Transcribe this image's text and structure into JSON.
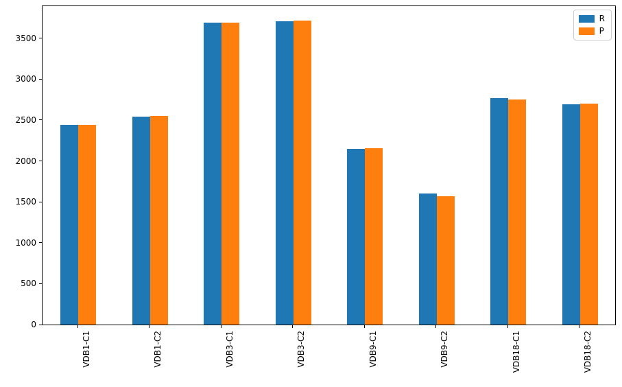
{
  "chart_data": {
    "type": "bar",
    "title": "",
    "xlabel": "",
    "ylabel": "",
    "categories": [
      "VDB1-C1",
      "VDB1-C2",
      "VDB3-C1",
      "VDB3-C2",
      "VDB9-C1",
      "VDB9-C2",
      "VDB18-C1",
      "VDB18-C2"
    ],
    "series": [
      {
        "name": "R",
        "color": "#1f77b4",
        "values": [
          2440,
          2545,
          3690,
          3705,
          2150,
          1605,
          2765,
          2690
        ]
      },
      {
        "name": "P",
        "color": "#ff7f0e",
        "values": [
          2440,
          2550,
          3690,
          3715,
          2155,
          1570,
          2755,
          2700
        ]
      }
    ],
    "ylim": [
      0,
      3900
    ],
    "yticks": [
      0,
      500,
      1000,
      1500,
      2000,
      2500,
      3000,
      3500
    ],
    "grid": false,
    "legend_position": "upper right",
    "x_label_rotation_deg": 90,
    "bar_width_fraction": 0.25
  },
  "colors": {
    "background": "#ffffff",
    "axis": "#000000",
    "legend_border": "#cccccc"
  }
}
